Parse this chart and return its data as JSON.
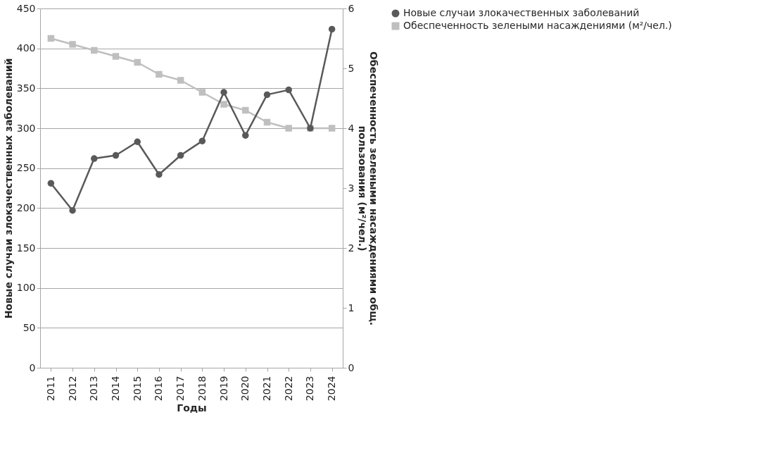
{
  "chart_data": {
    "type": "line",
    "xlabel": "Годы",
    "ylabel": "Новые случаи злокачественных заболеваний",
    "y2label": "Обеспеченность зелеными насаждениями общ.\nпользования (м²/чел.)",
    "categories": [
      "2011",
      "2012",
      "2013",
      "2014",
      "2015",
      "2016",
      "2017",
      "2018",
      "2019",
      "2020",
      "2021",
      "2022",
      "2023",
      "2024"
    ],
    "series": [
      {
        "name": "Новые случаи злокачественных заболеваний",
        "color": "#595959",
        "marker": "circle",
        "values": [
          231,
          197,
          262,
          266,
          283,
          242,
          266,
          284,
          345,
          291,
          342,
          348,
          300,
          424
        ]
      },
      {
        "name": "Обеспеченность зелеными насаждениями (м²/чел.)",
        "color": "#bfbfbf",
        "marker": "square",
        "axis": "y2",
        "values": [
          5.5,
          5.4,
          5.3,
          5.2,
          5.1,
          4.9,
          4.8,
          4.6,
          4.4,
          4.3,
          4.1,
          4.0,
          4.0,
          4.0
        ]
      }
    ],
    "ylim": [
      0,
      450
    ],
    "yticks": [
      0,
      50,
      100,
      150,
      200,
      250,
      300,
      350,
      400,
      450
    ],
    "y2lim": [
      0,
      6
    ],
    "y2ticks": [
      0,
      1,
      2,
      3,
      4,
      5,
      6
    ],
    "grid": "y",
    "legend": "right"
  }
}
